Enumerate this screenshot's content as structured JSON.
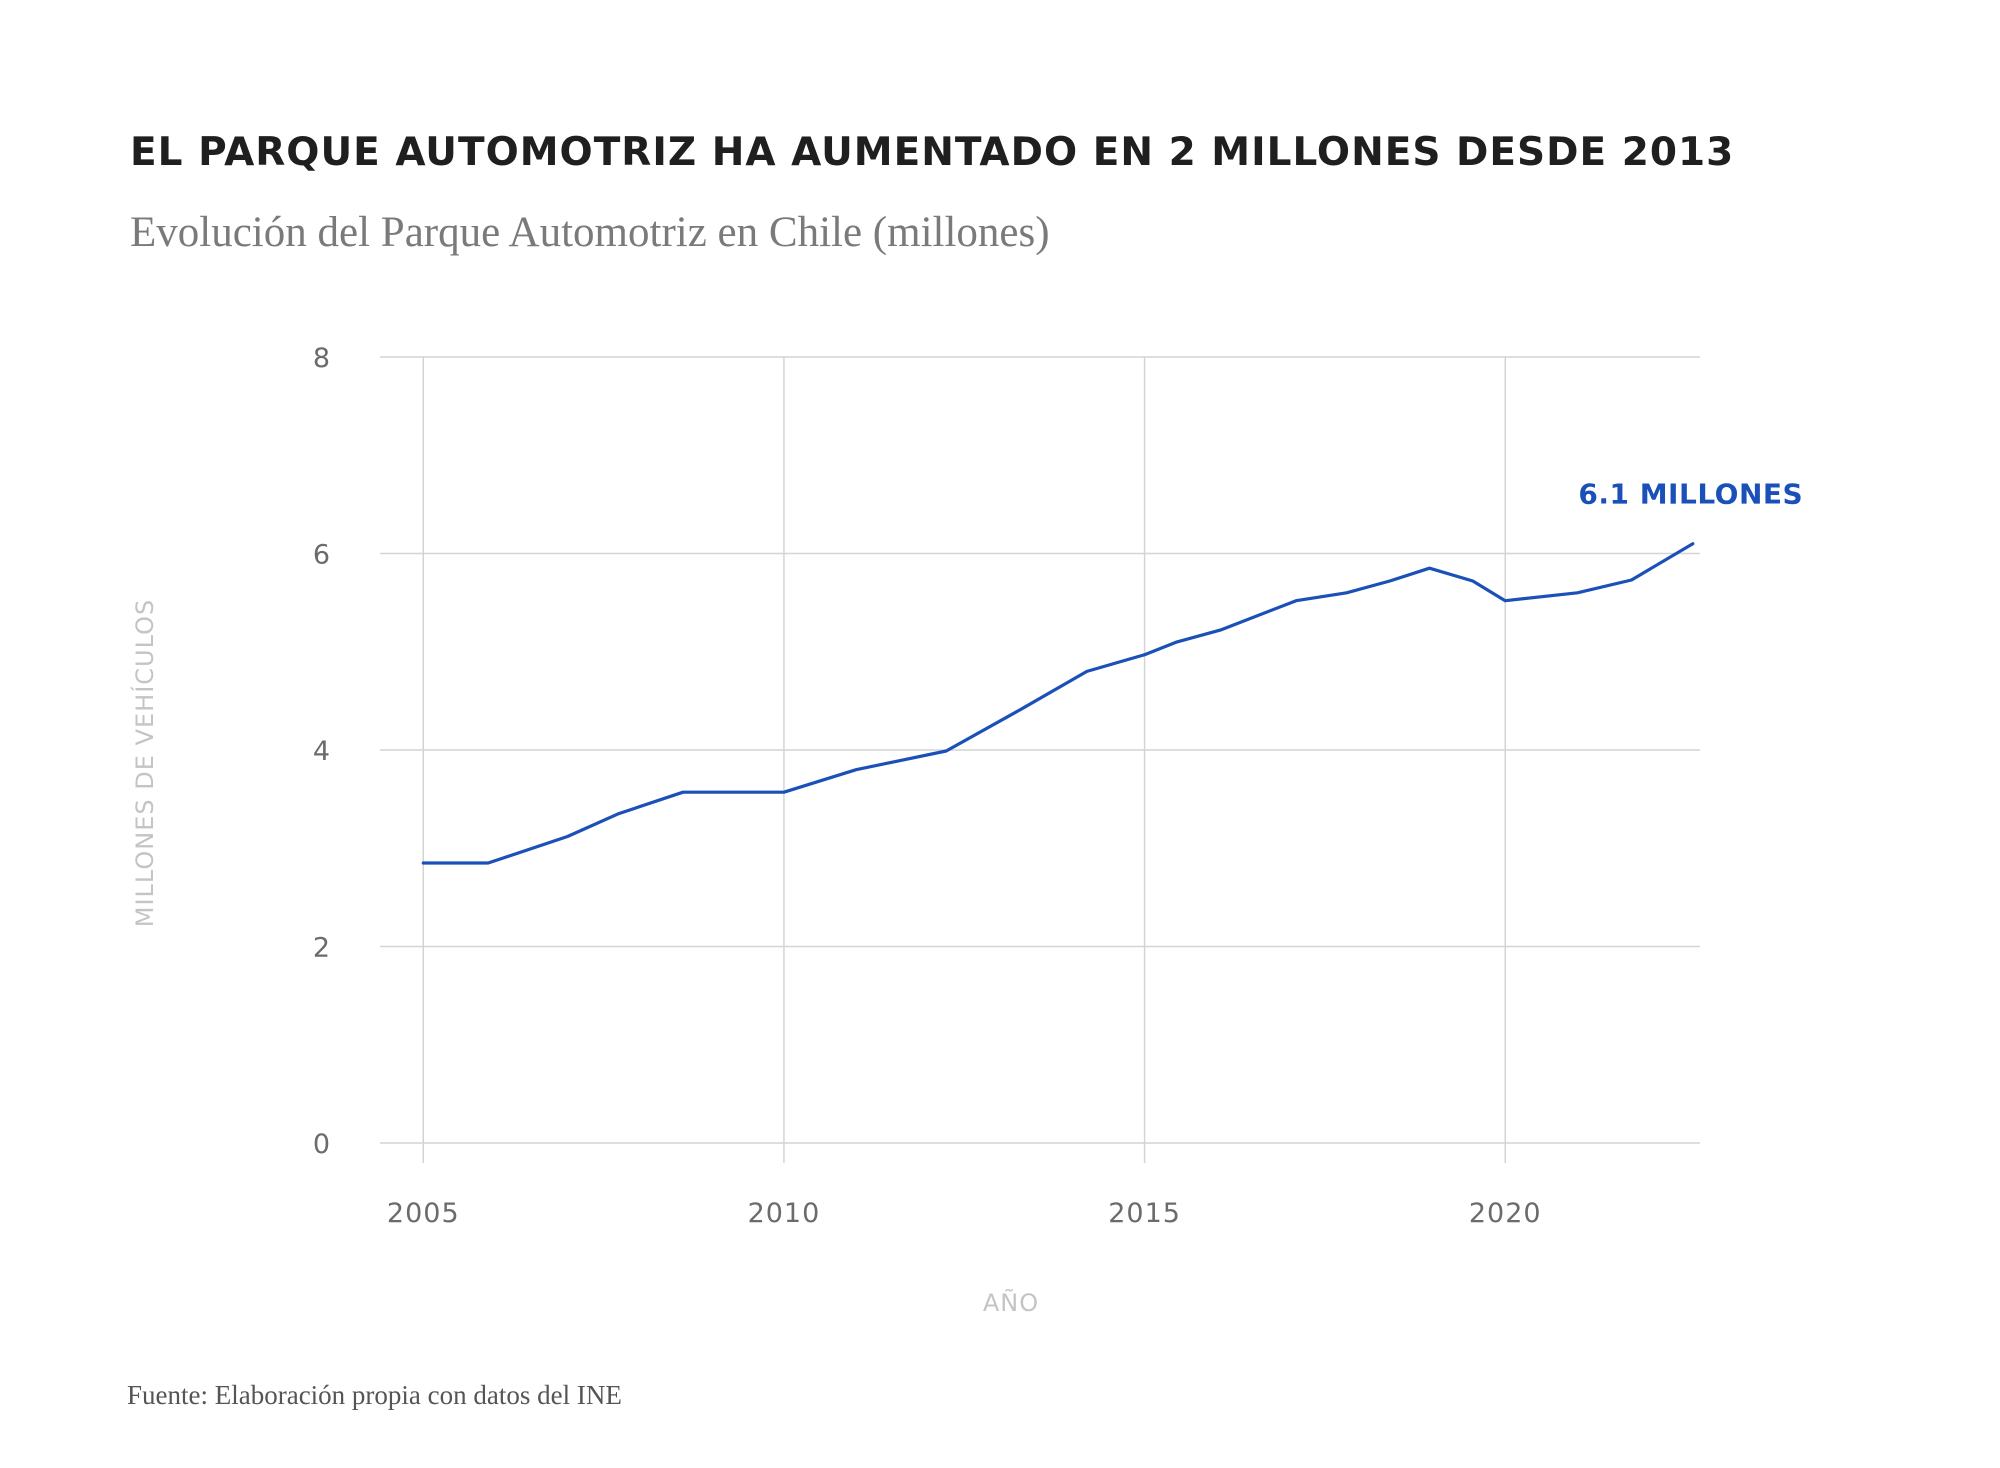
{
  "header": {
    "title": "EL PARQUE AUTOMOTRIZ HA AUMENTADO EN 2 MILLONES DESDE 2013",
    "subtitle": "Evolución del Parque Automotriz en Chile (millones)"
  },
  "footer": {
    "source": "Fuente: Elaboración propia con datos del INE"
  },
  "chart_data": {
    "type": "line",
    "title": "EL PARQUE AUTOMOTRIZ HA AUMENTADO EN 2 MILLONES DESDE 2013",
    "subtitle": "Evolución del Parque Automotriz en Chile (millones)",
    "xlabel": "AÑO",
    "ylabel": "MILLONES DE VEHÍCULOS",
    "xlim": [
      2004.4,
      2022.7
    ],
    "ylim": [
      0,
      8
    ],
    "x_ticks": [
      2005,
      2010,
      2015,
      2020
    ],
    "y_ticks": [
      0,
      2,
      4,
      6,
      8
    ],
    "grid": true,
    "line_color": "#1a50b8",
    "series": [
      {
        "name": "Parque Automotriz",
        "x": [
          2005,
          2005.9,
          2007.0,
          2007.7,
          2008.6,
          2010.0,
          2011.0,
          2012.25,
          2013.3,
          2014.2,
          2015.0,
          2015.45,
          2016.05,
          2017.1,
          2017.8,
          2018.4,
          2018.95,
          2019.55,
          2020.0,
          2021.0,
          2021.75,
          2022.6
        ],
        "values": [
          2.85,
          2.85,
          3.12,
          3.35,
          3.57,
          3.57,
          3.8,
          3.99,
          4.42,
          4.8,
          4.97,
          5.1,
          5.22,
          5.52,
          5.6,
          5.72,
          5.85,
          5.72,
          5.52,
          5.6,
          5.73,
          6.1
        ]
      }
    ],
    "annotations": [
      {
        "text": "6.1 MILLONES",
        "x": 2022.6,
        "y": 6.1
      }
    ]
  }
}
